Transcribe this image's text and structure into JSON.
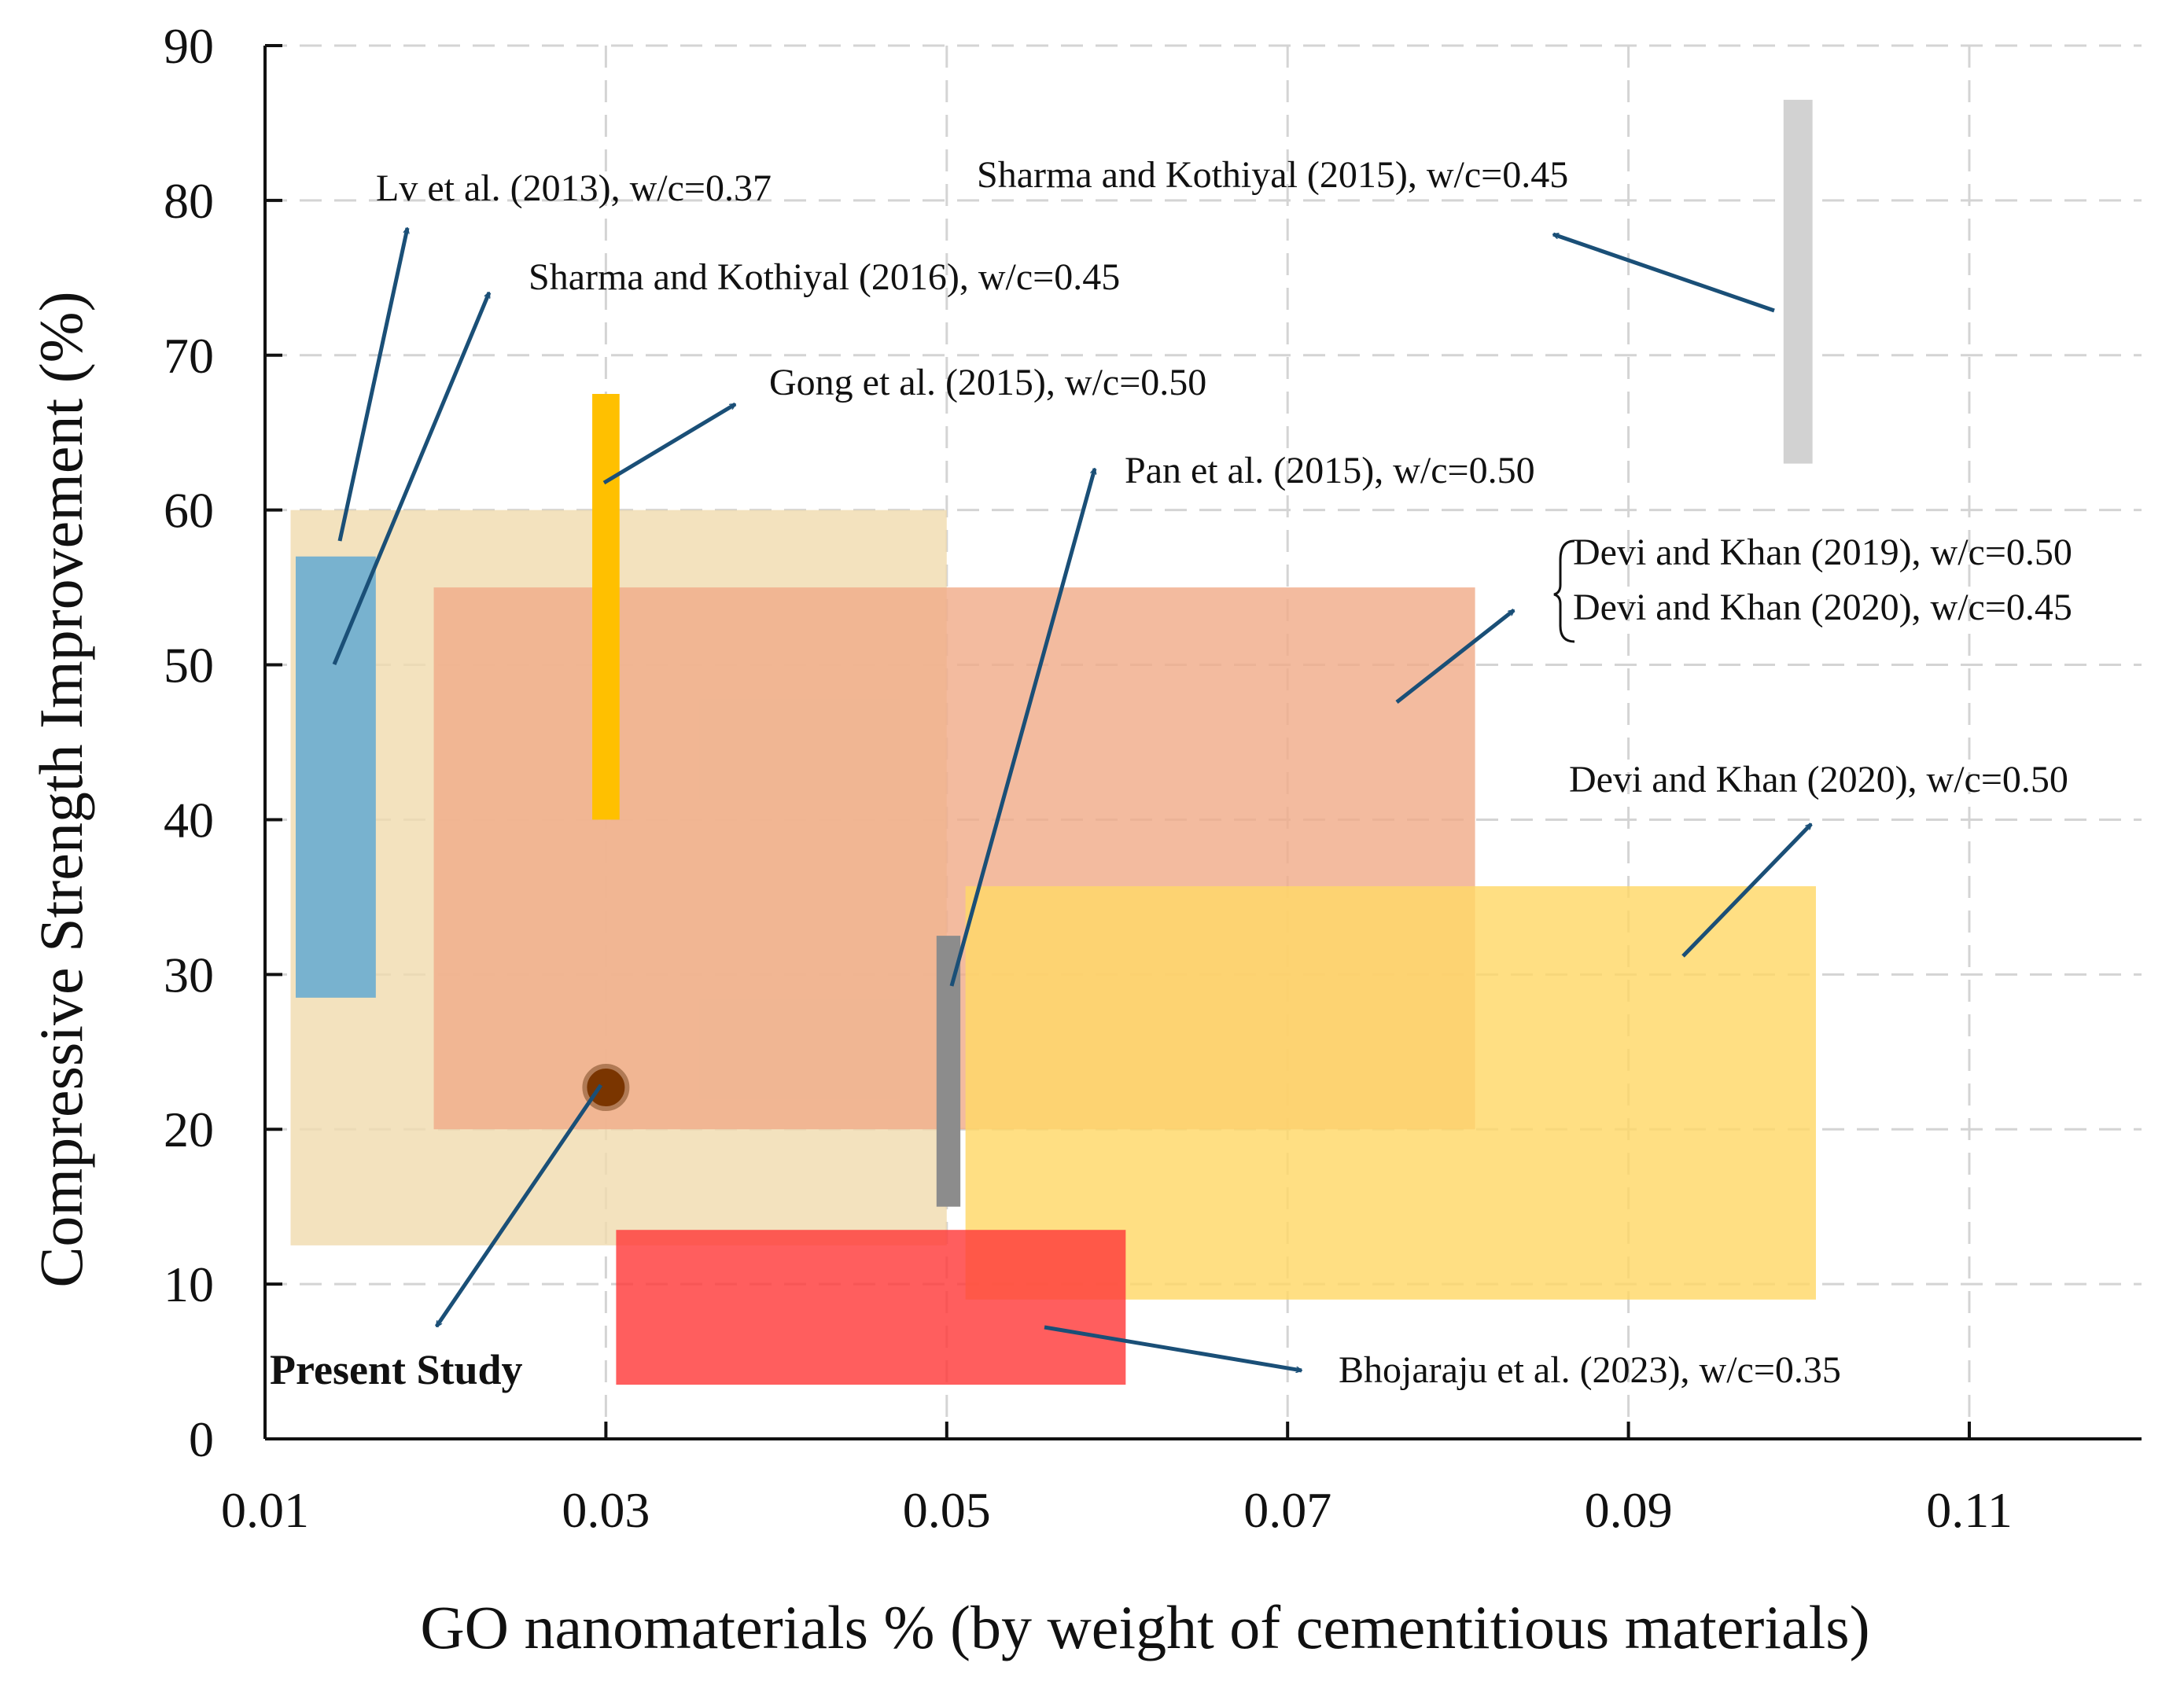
{
  "chart_data": {
    "type": "scatter",
    "xlabel": "GO nanomaterials % (by weight of cementitious materials)",
    "ylabel": "Compressive Strength Improvement (%)",
    "xlim": [
      0.01,
      0.12
    ],
    "ylim": [
      0,
      90
    ],
    "x_ticks": [
      0.01,
      0.03,
      0.05,
      0.07,
      0.09,
      0.11
    ],
    "x_tick_labels": [
      "0.01",
      "0.03",
      "0.05",
      "0.07",
      "0.09",
      "0.11"
    ],
    "y_ticks": [
      0,
      10,
      20,
      30,
      40,
      50,
      60,
      70,
      80,
      90
    ],
    "y_tick_labels": [
      "0",
      "10",
      "20",
      "30",
      "40",
      "50",
      "60",
      "70",
      "80",
      "90"
    ],
    "grid": true,
    "grid_style": "dashed",
    "ranges": [
      {
        "label": "Lv et al. (2013), w/c=0.37",
        "x0": 0.0115,
        "x1": 0.05,
        "y0": 12.5,
        "y1": 60,
        "color": "#f0dcb0"
      },
      {
        "label": "Sharma and Kothiyal (2016), w/c=0.45",
        "x0": 0.0118,
        "x1": 0.0165,
        "y0": 28.5,
        "y1": 57,
        "color": "#78b2cf"
      },
      {
        "label": "Devi and Khan (2019), w/c=0.50 / Devi and Khan (2020), w/c=0.45",
        "x0": 0.0199,
        "x1": 0.081,
        "y0": 20,
        "y1": 55,
        "color": "#f0ac8a"
      },
      {
        "label": "Devi and Khan (2020), w/c=0.50",
        "x0": 0.0511,
        "x1": 0.101,
        "y0": 9,
        "y1": 35.7,
        "color": "#ffd868"
      },
      {
        "label": "Bhojaraju et al. (2023), w/c=0.35",
        "x0": 0.0306,
        "x1": 0.0605,
        "y0": 3.5,
        "y1": 13.5,
        "color": "#ff3b3b"
      },
      {
        "label": "Gong et al. (2015), w/c=0.50",
        "x0": 0.0292,
        "x1": 0.0308,
        "y0": 40,
        "y1": 67.5,
        "color": "#ffc000"
      },
      {
        "label": "Pan et al. (2015), w/c=0.50",
        "x0": 0.0494,
        "x1": 0.0508,
        "y0": 15,
        "y1": 32.5,
        "color": "#8c8c8c"
      },
      {
        "label": "Sharma and Kothiyal (2015), w/c=0.45",
        "x0": 0.0991,
        "x1": 0.1008,
        "y0": 63,
        "y1": 86.5,
        "color": "#d2d2d2"
      }
    ],
    "points": [
      {
        "label": "Present Study",
        "x": 0.03,
        "y": 22.7,
        "color": "#7a3500"
      }
    ]
  },
  "annotations": {
    "lv_2013": "Lv et al. (2013), w/c=0.37",
    "sharma_2016": "Sharma and Kothiyal (2016), w/c=0.45",
    "gong_2015": "Gong et al. (2015), w/c=0.50",
    "pan_2015": "Pan et al. (2015), w/c=0.50",
    "sharma_2015": "Sharma and Kothiyal (2015), w/c=0.45",
    "devi_2019": "Devi and Khan (2019), w/c=0.50",
    "devi_2020_045": "Devi and Khan (2020), w/c=0.45",
    "devi_2020_050": "Devi and Khan (2020), w/c=0.50",
    "bhojaraju_2023": "Bhojaraju et al. (2023), w/c=0.35",
    "present_study": "Present Study"
  },
  "colors": {
    "arrow": "#1a4f77",
    "axis": "#111111",
    "grid": "#d4d4d4"
  }
}
